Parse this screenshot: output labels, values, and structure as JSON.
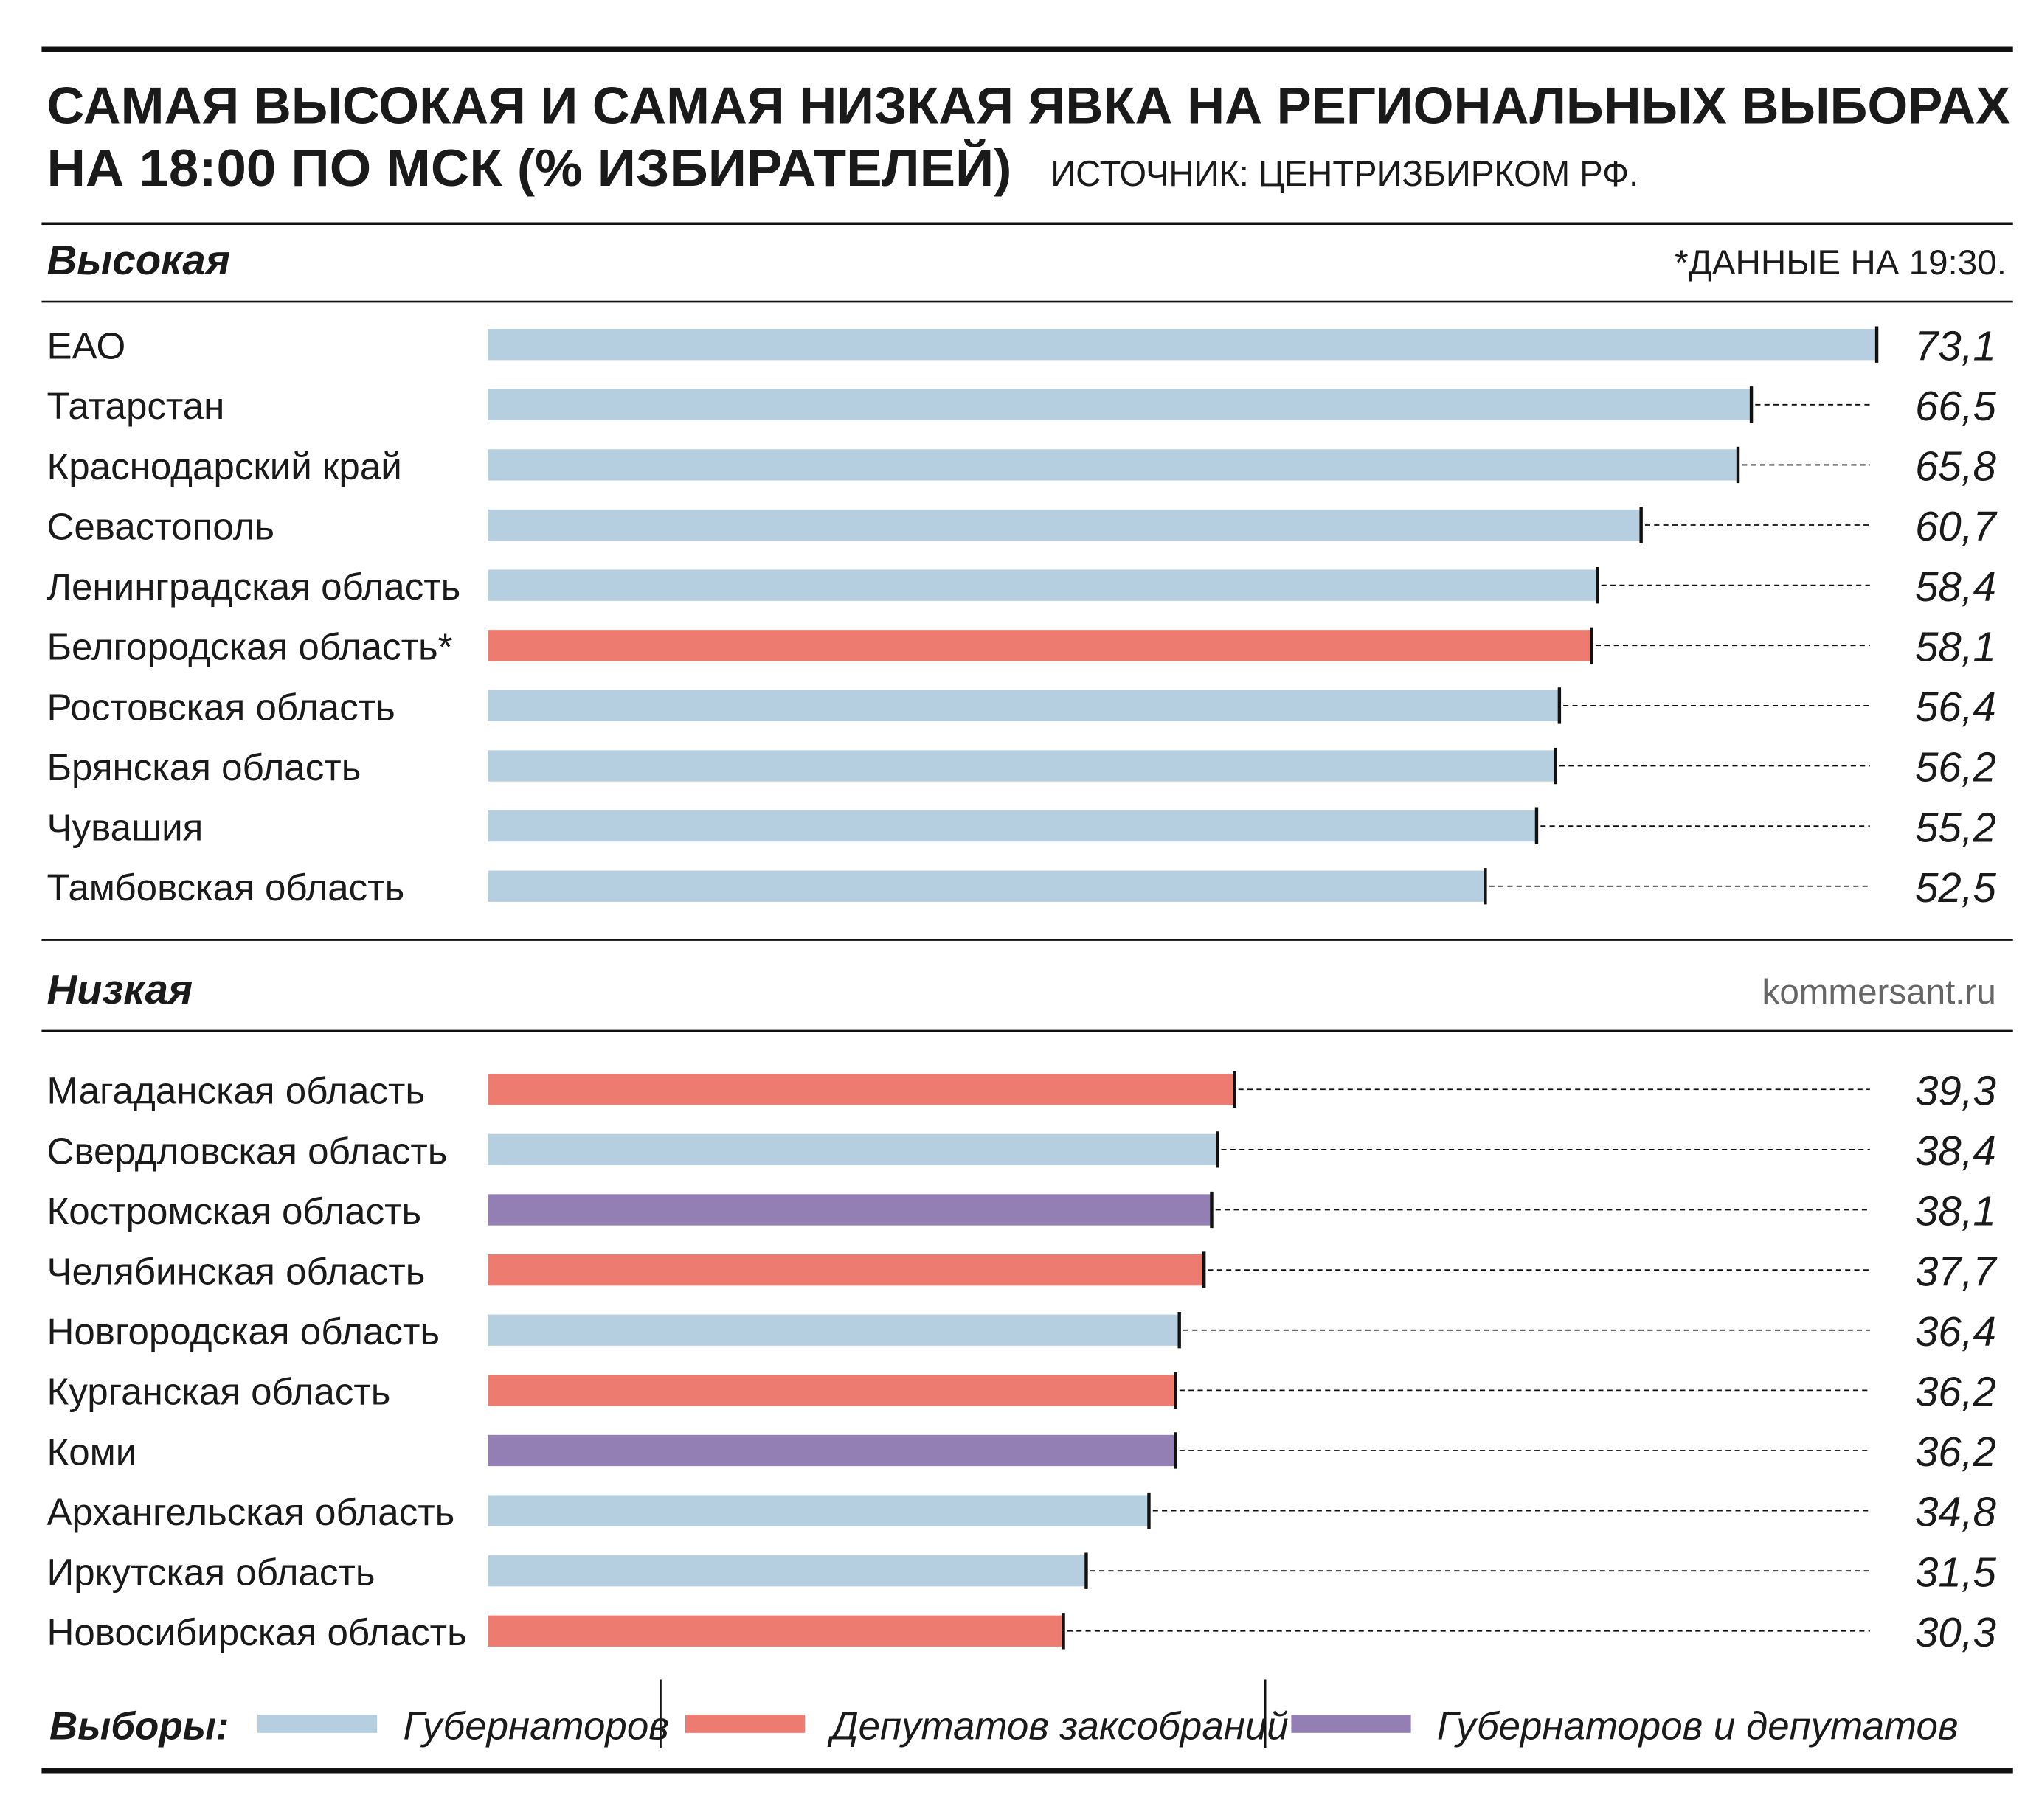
{
  "header": {
    "title_lines": [
      "САМАЯ ВЫСОКАЯ И САМАЯ НИЗКАЯ ЯВКА НА РЕГИОНАЛЬНЫХ ВЫБОРАХ",
      "НА 18:00 ПО МСК (% ИЗБИРАТЕЛЕЙ)"
    ],
    "source": "ИСТОЧНИК: ЦЕНТРИЗБИРКОМ РФ."
  },
  "note": "*ДАННЫЕ НА 19:30.",
  "credit": "kommersant.ru",
  "chart_data": [
    {
      "type": "bar",
      "title": "Высокая",
      "categories": [
        "ЕАО",
        "Татарстан",
        "Краснодарский край",
        "Севастополь",
        "Ленинградская область",
        "Белгородская область*",
        "Ростовская область",
        "Брянская область",
        "Чувашия",
        "Тамбовская область"
      ],
      "values": [
        73.1,
        66.5,
        65.8,
        60.7,
        58.4,
        58.1,
        56.4,
        56.2,
        55.2,
        52.5
      ],
      "value_labels": [
        "73,1",
        "66,5",
        "65,8",
        "60,7",
        "58,4",
        "58,1",
        "56,4",
        "56,2",
        "55,2",
        "52,5"
      ],
      "colors": [
        "#b5cfe0",
        "#b5cfe0",
        "#b5cfe0",
        "#b5cfe0",
        "#b5cfe0",
        "#ee7b70",
        "#b5cfe0",
        "#b5cfe0",
        "#b5cfe0",
        "#b5cfe0"
      ],
      "xlim": [
        0,
        75
      ]
    },
    {
      "type": "bar",
      "title": "Низкая",
      "categories": [
        "Магаданская область",
        "Свердловская область",
        "Костромская область",
        "Челябинская область",
        "Новгородская область",
        "Курганская область",
        "Коми",
        "Архангельская область",
        "Иркутская область",
        "Новосибирская область"
      ],
      "values": [
        39.3,
        38.4,
        38.1,
        37.7,
        36.4,
        36.2,
        36.2,
        34.8,
        31.5,
        30.3
      ],
      "value_labels": [
        "39,3",
        "38,4",
        "38,1",
        "37,7",
        "36,4",
        "36,2",
        "36,2",
        "34,8",
        "31,5",
        "30,3"
      ],
      "colors": [
        "#ee7b70",
        "#b5cfe0",
        "#937fb3",
        "#ee7b70",
        "#b5cfe0",
        "#ee7b70",
        "#937fb3",
        "#b5cfe0",
        "#b5cfe0",
        "#ee7b70"
      ],
      "xlim": [
        0,
        75
      ]
    }
  ],
  "legend": {
    "title": "Выборы:",
    "entries": [
      {
        "name": "Губернаторов",
        "color": "#b5cfe0"
      },
      {
        "name": "Депутатов заксобраний",
        "color": "#ee7b70"
      },
      {
        "name": "Губернаторов и депутатов",
        "color": "#937fb3"
      }
    ]
  }
}
